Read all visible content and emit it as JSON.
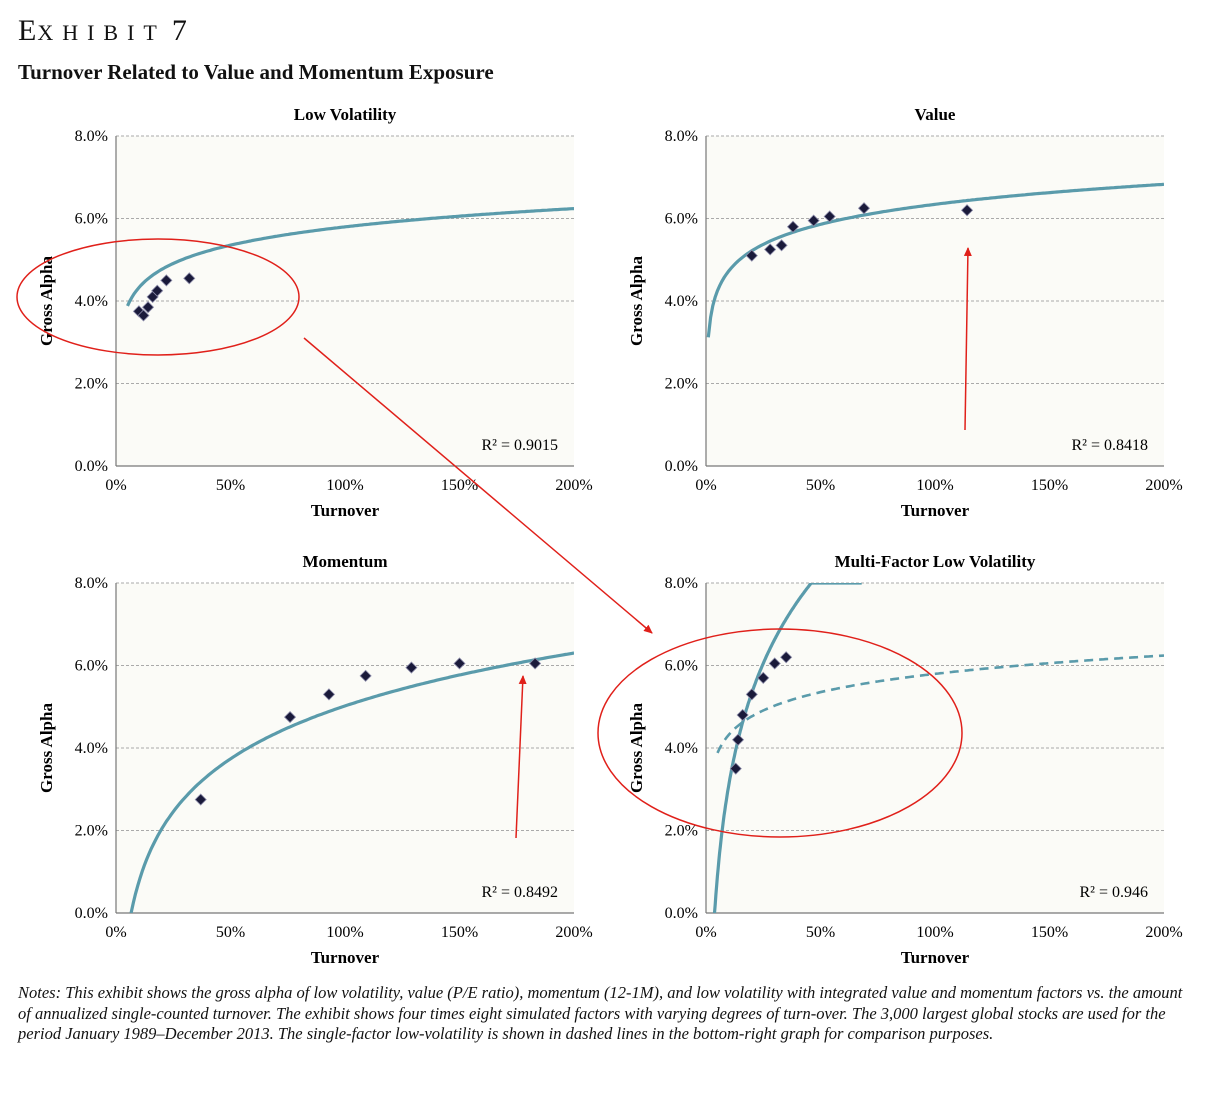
{
  "header": {
    "exhibit_big": "E",
    "exhibit_small": "XHIBIT",
    "exhibit_number": "7",
    "title": "Turnover Related to Value and Momentum Exposure"
  },
  "notes": "Notes: This exhibit shows the gross alpha of low volatility, value (P/E ratio), momentum (12-1M), and low volatility with integrated value and momentum factors vs. the amount of annualized single-counted turnover. The exhibit shows four times eight simulated factors with varying degrees of turn-over. The 3,000 largest global stocks are used for the period January 1989–December 2013. The single-factor low-volatility is shown in dashed lines in the bottom-right graph for comparison purposes.",
  "colors": {
    "curve": "#5a9bab",
    "marker": "#1a1a3a",
    "annotation": "#e0201a",
    "plot_bg": "#fbfbf7",
    "grid": "#aaaaaa"
  },
  "chart_data": [
    {
      "type": "scatter",
      "title": "Low Volatility",
      "xlabel": "Turnover",
      "ylabel": "Gross Alpha",
      "xlim": [
        0,
        200
      ],
      "ylim": [
        0,
        8
      ],
      "x_ticks": [
        "0%",
        "50%",
        "100%",
        "150%",
        "200%"
      ],
      "y_ticks": [
        "0.0%",
        "2.0%",
        "4.0%",
        "6.0%",
        "8.0%"
      ],
      "grid": "horizontal dashed",
      "points": [
        [
          10,
          3.75
        ],
        [
          12,
          3.65
        ],
        [
          14,
          3.85
        ],
        [
          16,
          4.1
        ],
        [
          18,
          4.25
        ],
        [
          22,
          4.5
        ],
        [
          32,
          4.55
        ]
      ],
      "trendline": {
        "kind": "logarithmic",
        "a": 0.64,
        "b": 2.85,
        "x_range": [
          5,
          200
        ]
      },
      "r_squared": "R² = 0.9015"
    },
    {
      "type": "scatter",
      "title": "Value",
      "xlabel": "Turnover",
      "ylabel": "Gross Alpha",
      "xlim": [
        0,
        200
      ],
      "ylim": [
        0,
        8
      ],
      "x_ticks": [
        "0%",
        "50%",
        "100%",
        "150%",
        "200%"
      ],
      "y_ticks": [
        "0.0%",
        "2.0%",
        "4.0%",
        "6.0%",
        "8.0%"
      ],
      "grid": "horizontal dashed",
      "points": [
        [
          20,
          5.1
        ],
        [
          28,
          5.25
        ],
        [
          33,
          5.35
        ],
        [
          38,
          5.8
        ],
        [
          47,
          5.95
        ],
        [
          54,
          6.05
        ],
        [
          69,
          6.25
        ],
        [
          114,
          6.2
        ]
      ],
      "trendline": {
        "kind": "logarithmic",
        "a": 0.7,
        "b": 3.12,
        "x_range": [
          1,
          200
        ]
      },
      "r_squared": "R² = 0.8418"
    },
    {
      "type": "scatter",
      "title": "Momentum",
      "xlabel": "Turnover",
      "ylabel": "Gross Alpha",
      "xlim": [
        0,
        200
      ],
      "ylim": [
        0,
        8
      ],
      "x_ticks": [
        "0%",
        "50%",
        "100%",
        "150%",
        "200%"
      ],
      "y_ticks": [
        "0.0%",
        "2.0%",
        "4.0%",
        "6.0%",
        "8.0%"
      ],
      "grid": "horizontal dashed",
      "points": [
        [
          37,
          2.75
        ],
        [
          76,
          4.75
        ],
        [
          93,
          5.3
        ],
        [
          109,
          5.75
        ],
        [
          129,
          5.95
        ],
        [
          150,
          6.05
        ],
        [
          183,
          6.05
        ]
      ],
      "trendline": {
        "kind": "logarithmic",
        "a": 1.85,
        "b": -3.5,
        "x_range": [
          6.6,
          200
        ]
      },
      "r_squared": "R² = 0.8492"
    },
    {
      "type": "scatter",
      "title": "Multi-Factor Low Volatility",
      "xlabel": "Turnover",
      "ylabel": "Gross Alpha",
      "xlim": [
        0,
        200
      ],
      "ylim": [
        0,
        8
      ],
      "x_ticks": [
        "0%",
        "50%",
        "100%",
        "150%",
        "200%"
      ],
      "y_ticks": [
        "0.0%",
        "2.0%",
        "4.0%",
        "6.0%",
        "8.0%"
      ],
      "grid": "horizontal dashed",
      "points": [
        [
          13,
          3.5
        ],
        [
          14,
          4.2
        ],
        [
          16,
          4.8
        ],
        [
          20,
          5.3
        ],
        [
          25,
          5.7
        ],
        [
          30,
          6.05
        ],
        [
          35,
          6.2
        ]
      ],
      "trendline": {
        "kind": "logarithmic",
        "a": 3.2,
        "b": -4.25,
        "x_range": [
          3.7,
          68
        ]
      },
      "dashed_trendline": {
        "kind": "logarithmic",
        "a": 0.64,
        "b": 2.85,
        "x_range": [
          5,
          200
        ]
      },
      "r_squared": "R² = 0.946"
    }
  ]
}
